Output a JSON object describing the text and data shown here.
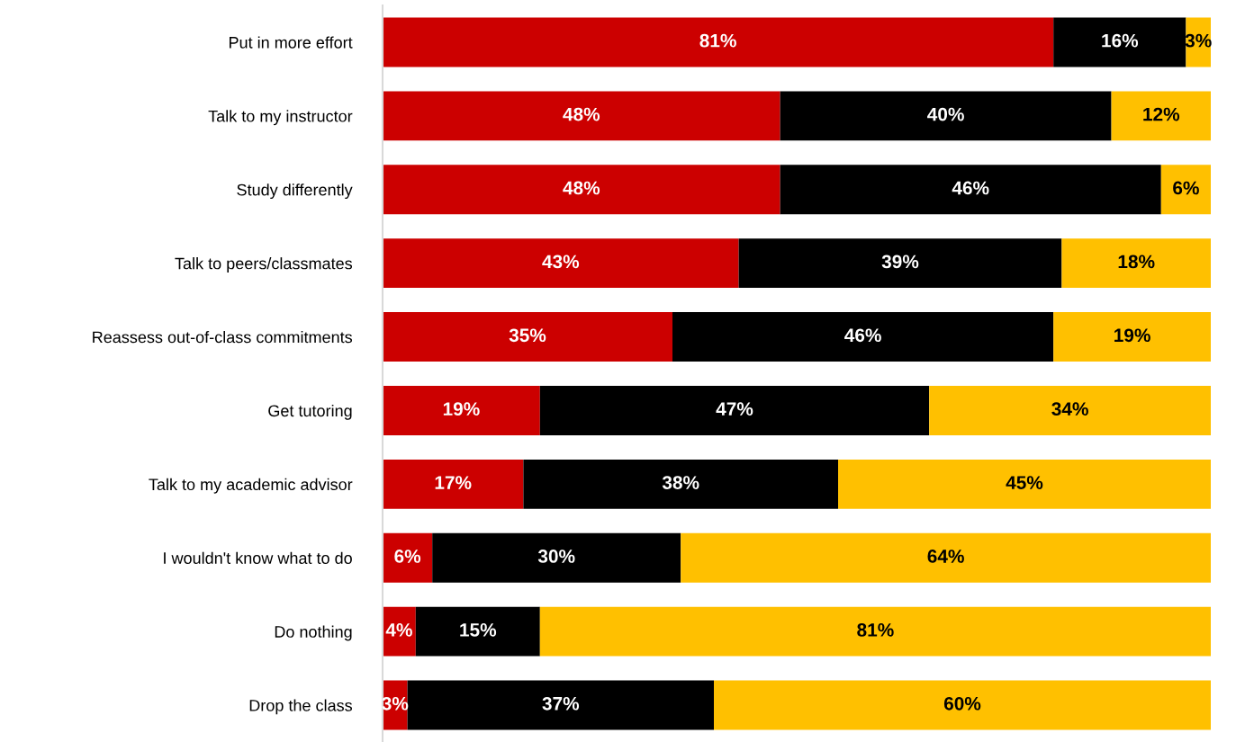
{
  "chart_data": {
    "type": "bar",
    "orientation": "horizontal",
    "stacked": true,
    "grid": false,
    "legend": false,
    "categories": [
      "Put in more effort",
      "Talk to my instructor",
      "Study differently",
      "Talk to peers/classmates",
      "Reassess out-of-class commitments",
      "Get tutoring",
      "Talk to my academic advisor",
      "I wouldn't know what to do",
      "Do nothing",
      "Drop the class"
    ],
    "series": [
      {
        "color": "#cc0000",
        "values": [
          81,
          48,
          48,
          43,
          35,
          19,
          17,
          6,
          4,
          3
        ],
        "value_labels": [
          "81%",
          "48%",
          "48%",
          "43%",
          "35%",
          "19%",
          "17%",
          "6%",
          "4%",
          "3%"
        ]
      },
      {
        "color": "#000000",
        "values": [
          16,
          40,
          46,
          39,
          46,
          47,
          38,
          30,
          15,
          37
        ],
        "value_labels": [
          "16%",
          "40%",
          "46%",
          "39%",
          "46%",
          "47%",
          "38%",
          "30%",
          "15%",
          "37%"
        ]
      },
      {
        "color": "#ffc000",
        "values": [
          3,
          12,
          6,
          18,
          19,
          34,
          45,
          64,
          81,
          60
        ],
        "value_labels": [
          "3%",
          "12%",
          "6%",
          "18%",
          "19%",
          "34%",
          "45%",
          "64%",
          "81%",
          "60%"
        ]
      }
    ]
  }
}
